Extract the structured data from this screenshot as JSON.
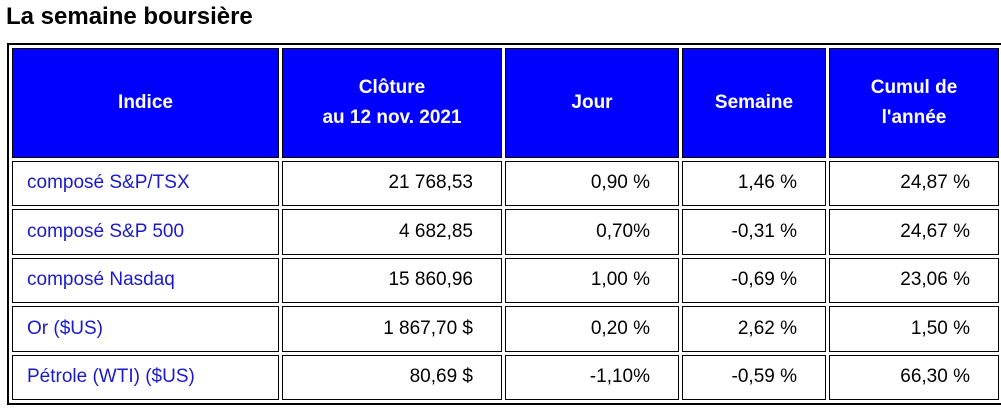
{
  "title": "La semaine boursière",
  "table": {
    "header": [
      [
        "Indice"
      ],
      [
        "Clôture",
        "au 12 nov. 2021"
      ],
      [
        "Jour"
      ],
      [
        "Semaine"
      ],
      [
        "Cumul de",
        "l'année"
      ]
    ],
    "rows": [
      [
        "composé S&P/TSX",
        "21 768,53",
        "0,90 %",
        "1,46 %",
        "24,87 %"
      ],
      [
        "composé S&P 500",
        "4 682,85",
        "0,70%",
        "-0,31 %",
        "24,67 %"
      ],
      [
        "composé Nasdaq",
        "15 860,96",
        "1,00 %",
        "-0,69 %",
        "23,06 %"
      ],
      [
        "Or ($US)",
        "1 867,70 $",
        "0,20 %",
        "2,62 %",
        "1,50 %"
      ],
      [
        "Pétrole (WTI) ($US)",
        "80,69 $",
        "-1,10%",
        "-0,59 %",
        "66,30 %"
      ]
    ]
  }
}
